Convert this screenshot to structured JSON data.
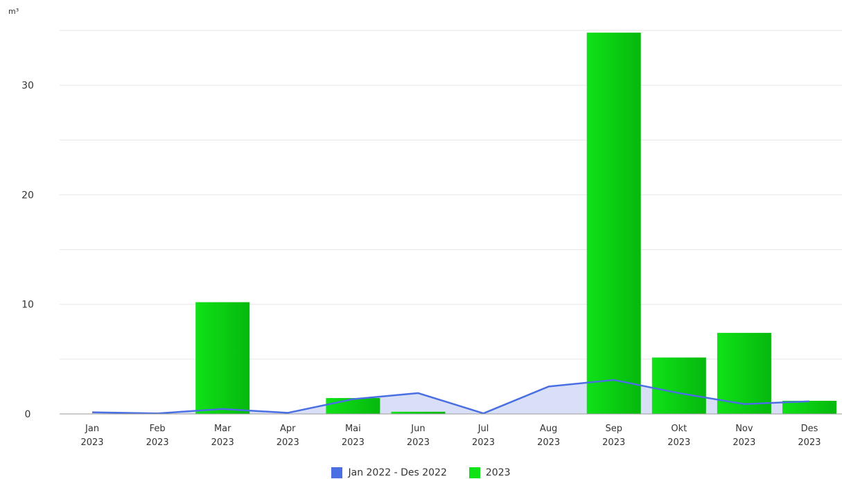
{
  "unit_label": "m³",
  "colors": {
    "line": "#4a6fe3",
    "area": "#d6dcf7",
    "bar_light": "#10e218",
    "bar_dark": "#05b80d",
    "grid": "#e6e6e6",
    "axis": "#999999"
  },
  "chart_data": {
    "type": "bar",
    "ylabel": "m³",
    "ylim": [
      0,
      35
    ],
    "yticks": [
      "0",
      "10",
      "20",
      "30"
    ],
    "categories": [
      [
        "Jan",
        "2023"
      ],
      [
        "Feb",
        "2023"
      ],
      [
        "Mar",
        "2023"
      ],
      [
        "Apr",
        "2023"
      ],
      [
        "Mai",
        "2023"
      ],
      [
        "Jun",
        "2023"
      ],
      [
        "Jul",
        "2023"
      ],
      [
        "Aug",
        "2023"
      ],
      [
        "Sep",
        "2023"
      ],
      [
        "Okt",
        "2023"
      ],
      [
        "Nov",
        "2023"
      ],
      [
        "Des",
        "2023"
      ]
    ],
    "series": [
      {
        "name": "Jan 2022 - Des 2022",
        "type": "area-line",
        "values": [
          0.15,
          0.05,
          0.45,
          0.1,
          1.35,
          1.9,
          0.05,
          2.5,
          3.1,
          1.9,
          0.9,
          1.15
        ]
      },
      {
        "name": "2023",
        "type": "bar",
        "values": [
          0,
          0,
          10.2,
          0,
          1.45,
          0.2,
          0,
          0,
          34.8,
          5.15,
          7.4,
          1.2
        ]
      }
    ],
    "grid": true,
    "legend": "bottom-center"
  }
}
